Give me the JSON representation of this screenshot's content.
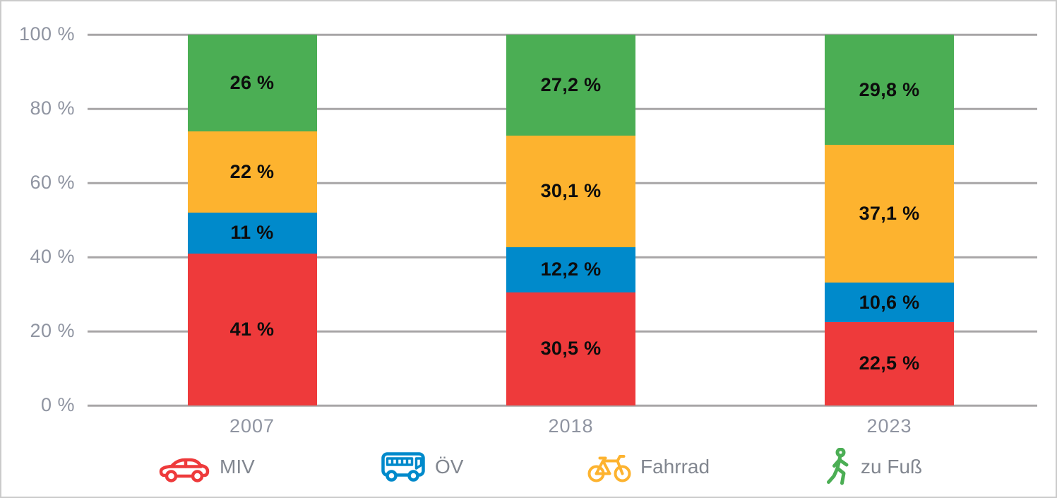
{
  "chart_data": {
    "type": "bar",
    "subtype": "stacked-100-percent-column",
    "categories": [
      "2007",
      "2018",
      "2023"
    ],
    "series": [
      {
        "name": "MIV",
        "color": "#ee3a3b",
        "values": [
          41,
          30.5,
          22.5
        ],
        "labels": [
          "41 %",
          "30,5 %",
          "22,5 %"
        ]
      },
      {
        "name": "ÖV",
        "color": "#008acb",
        "values": [
          11,
          12.2,
          10.6
        ],
        "labels": [
          "11 %",
          "12,2 %",
          "10,6 %"
        ]
      },
      {
        "name": "Fahrrad",
        "color": "#fdb32f",
        "values": [
          22,
          30.1,
          37.1
        ],
        "labels": [
          "22 %",
          "30,1 %",
          "37,1 %"
        ]
      },
      {
        "name": "zu Fuß",
        "color": "#4bae54",
        "values": [
          26,
          27.2,
          29.8
        ],
        "labels": [
          "26 %",
          "27,2 %",
          "29,8 %"
        ]
      }
    ],
    "stack_order_bottom_to_top": [
      "MIV",
      "ÖV",
      "Fahrrad",
      "zu Fuß"
    ],
    "y_axis": {
      "min": 0,
      "max": 100,
      "ticks": [
        "0 %",
        "20 %",
        "40 %",
        "60 %",
        "80 %",
        "100 %"
      ]
    },
    "grid": true,
    "legend_position": "bottom"
  },
  "legend": {
    "items": [
      {
        "label": "MIV",
        "icon": "car-icon",
        "color": "#ee3a3b"
      },
      {
        "label": "ÖV",
        "icon": "bus-icon",
        "color": "#008acb"
      },
      {
        "label": "Fahrrad",
        "icon": "bicycle-icon",
        "color": "#fdb32f"
      },
      {
        "label": "zu Fuß",
        "icon": "pedestrian-icon",
        "color": "#4bae54"
      }
    ]
  },
  "colors": {
    "grid": "#a8a6a7",
    "axis_text": "#8f94a1",
    "legend_text": "#81868f",
    "value_text": "#0d0d0d",
    "border": "#cbcbcb",
    "background": "#ffffff"
  }
}
